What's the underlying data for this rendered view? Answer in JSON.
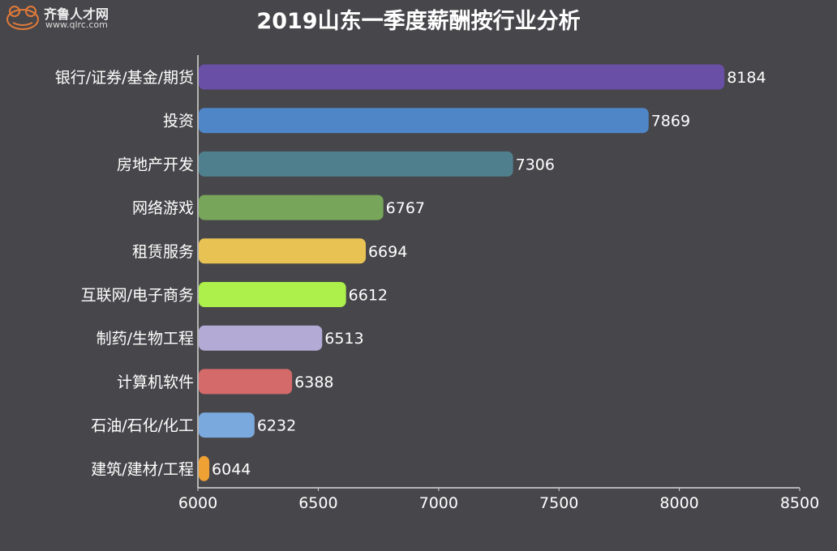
{
  "watermark": {
    "name": "齐鲁人才网",
    "url": "www.qlrc.com"
  },
  "chart_data": {
    "type": "bar",
    "orientation": "horizontal",
    "title": "2019山东一季度薪酬按行业分析",
    "categories": [
      "银行/证券/基金/期货",
      "投资",
      "房地产开发",
      "网络游戏",
      "租赁服务",
      "互联网/电子商务",
      "制药/生物工程",
      "计算机软件",
      "石油/石化/化工",
      "建筑/建材/工程"
    ],
    "values": [
      8184,
      7869,
      7306,
      6767,
      6694,
      6612,
      6513,
      6388,
      6232,
      6044
    ],
    "colors": [
      "#6a4fa6",
      "#4f86c8",
      "#4f7f8d",
      "#77a55a",
      "#e8c354",
      "#adf04b",
      "#b3aad6",
      "#d46a6a",
      "#7aa9dd",
      "#f0a133"
    ],
    "xlim": [
      6000,
      8500
    ],
    "xticks": [
      6000,
      6500,
      7000,
      7500,
      8000,
      8500
    ],
    "xlabel": "",
    "ylabel": "",
    "grid": false,
    "data_labels": true,
    "background": "#47464a"
  }
}
